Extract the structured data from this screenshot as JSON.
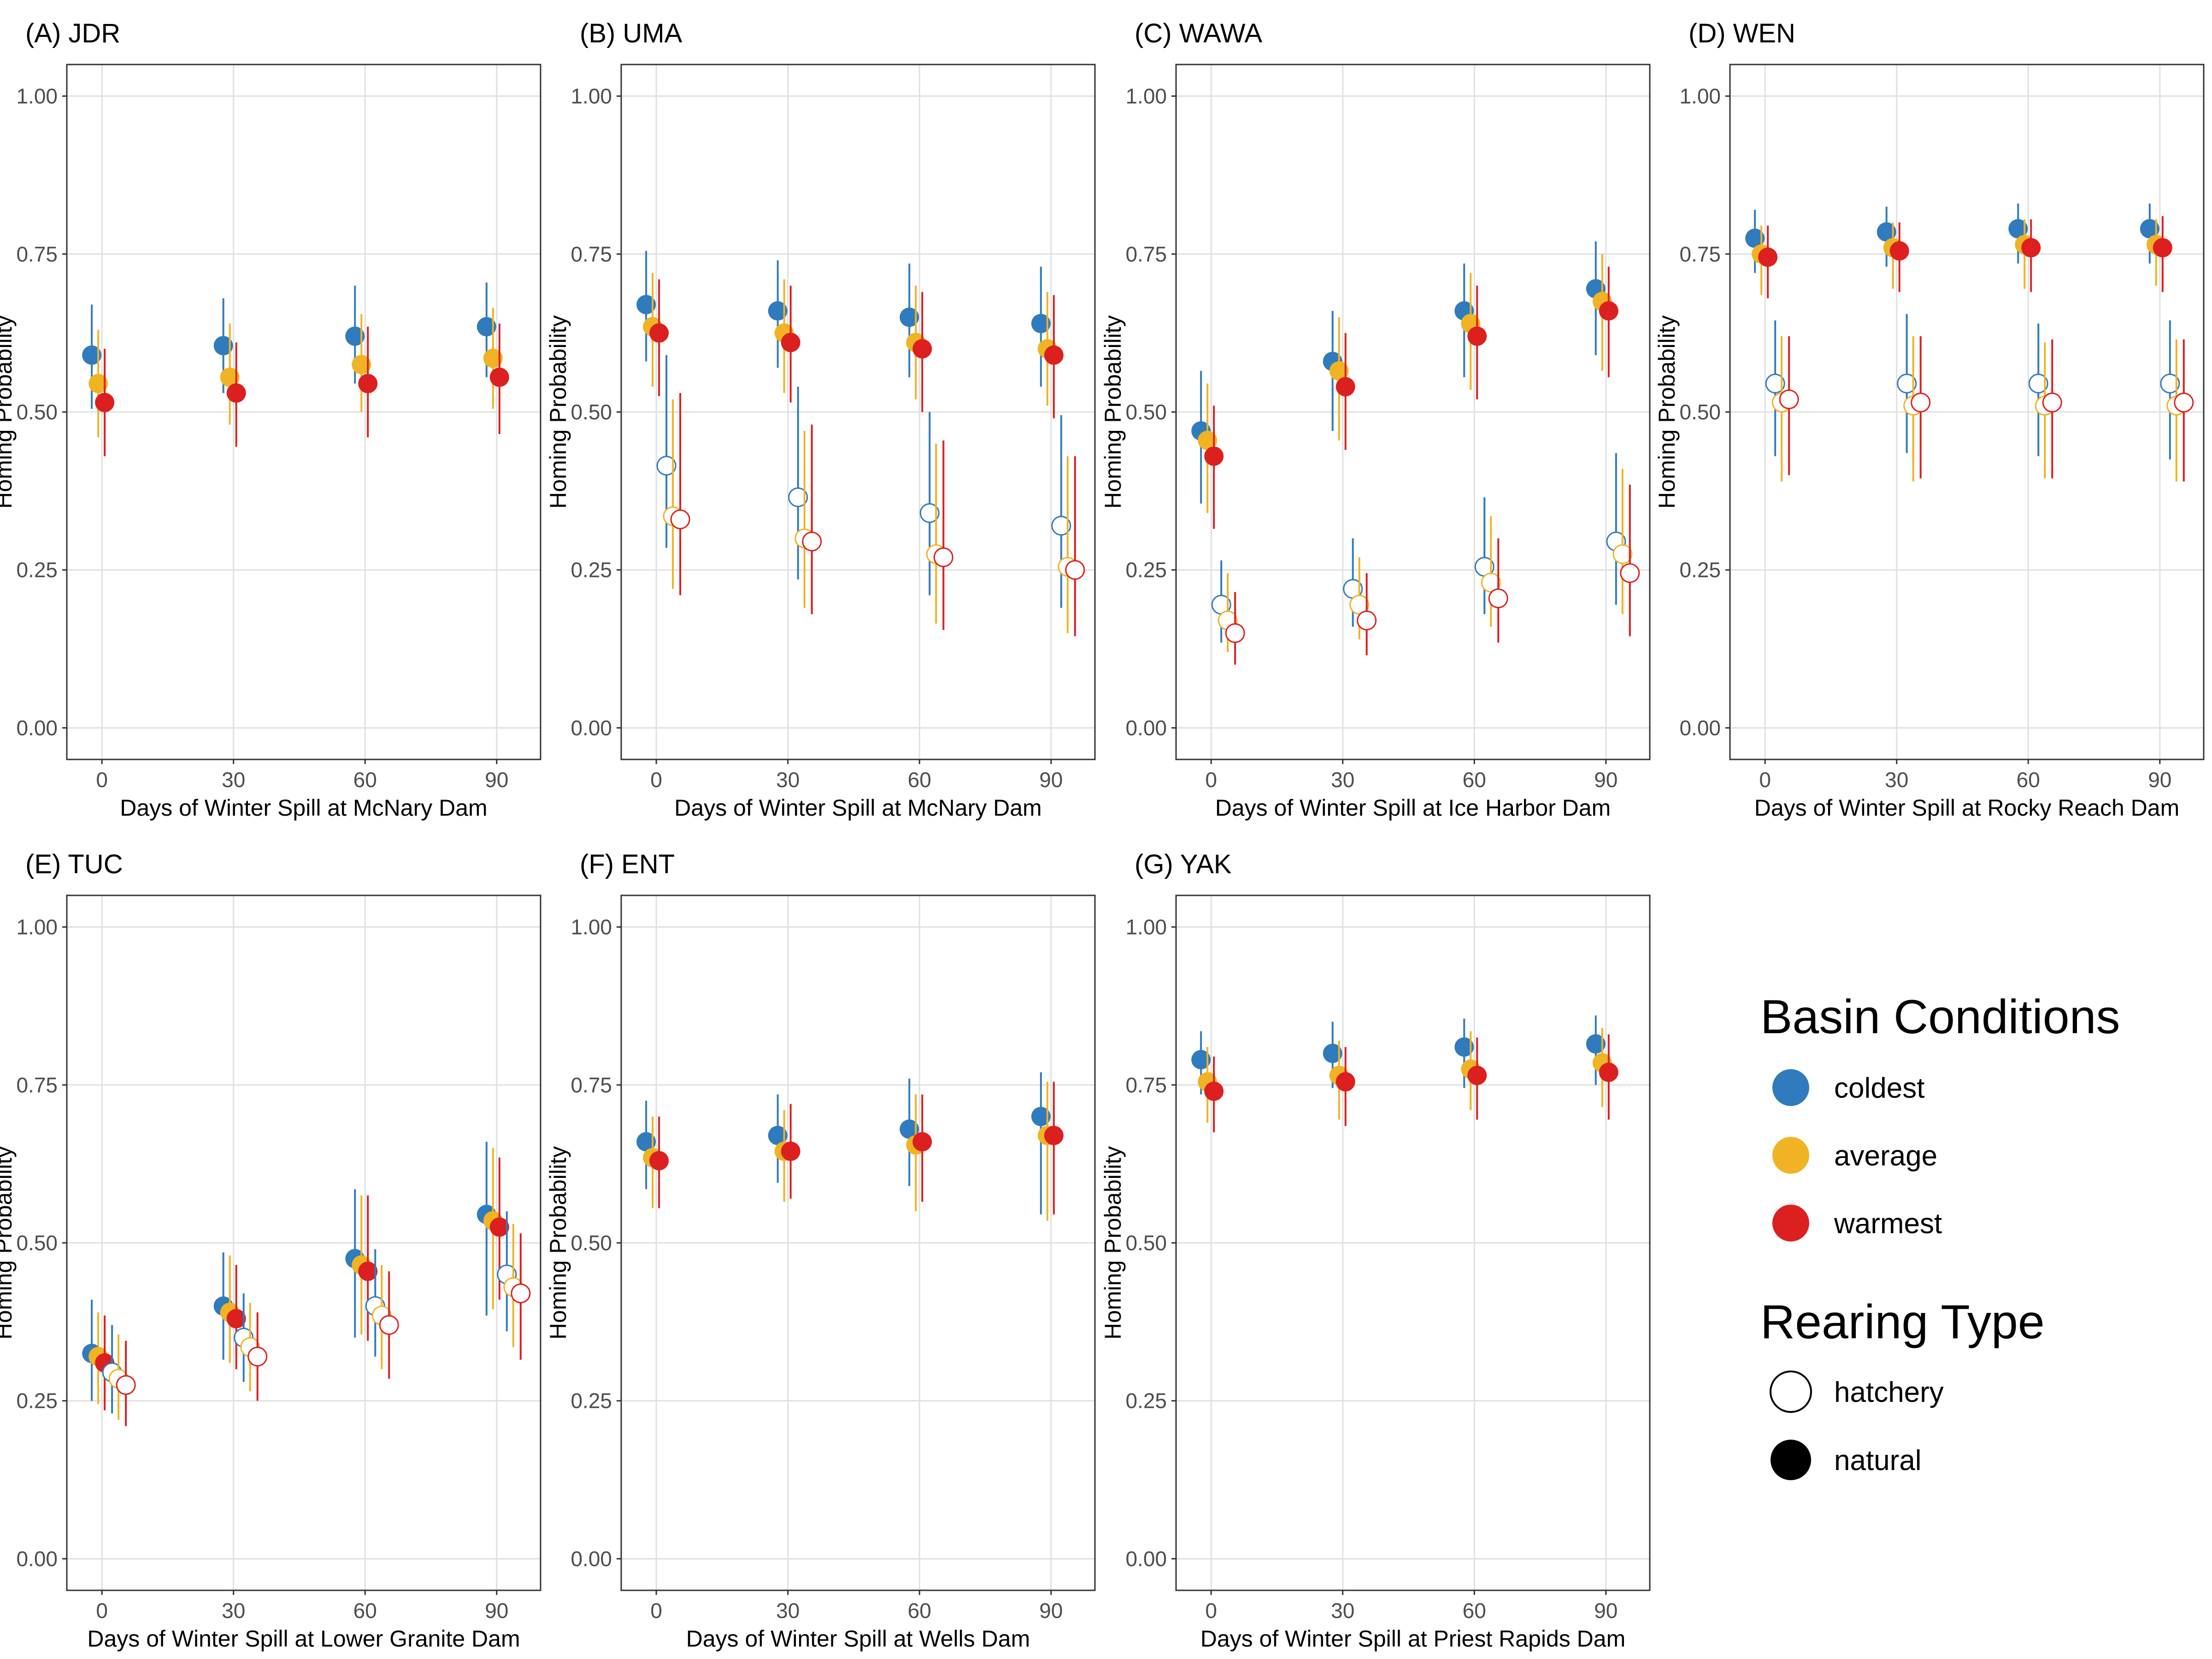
{
  "chart_data": {
    "type": "scatter",
    "y_label": "Homing Probability",
    "y_ticks": [
      "0.00",
      "0.25",
      "0.50",
      "0.75",
      "1.00"
    ],
    "ylim": [
      -0.05,
      1.05
    ],
    "x_values": [
      0,
      30,
      60,
      90
    ],
    "x_tick_labels": [
      "0",
      "30",
      "60",
      "90"
    ],
    "xlim": [
      -8,
      100
    ],
    "grid": true,
    "colors": {
      "coldest": "#2f7bbd",
      "average": "#f0b323",
      "warmest": "#dc1f1f"
    },
    "legend": {
      "position": "bottom-right",
      "basin_title": "Basin Conditions",
      "basin_items": [
        "coldest",
        "average",
        "warmest"
      ],
      "rearing_title": "Rearing Type",
      "rearing_items": [
        "hatchery",
        "natural"
      ]
    },
    "panels": [
      {
        "title": "(A) JDR",
        "xlabel": "Days of Winter Spill at McNary Dam",
        "series": [
          {
            "condition": "coldest",
            "rearing": "natural",
            "y": [
              0.59,
              0.605,
              0.62,
              0.635
            ],
            "lo": [
              0.505,
              0.53,
              0.545,
              0.555
            ],
            "hi": [
              0.67,
              0.68,
              0.7,
              0.705
            ]
          },
          {
            "condition": "average",
            "rearing": "natural",
            "y": [
              0.545,
              0.555,
              0.575,
              0.585
            ],
            "lo": [
              0.46,
              0.48,
              0.5,
              0.505
            ],
            "hi": [
              0.63,
              0.64,
              0.655,
              0.665
            ]
          },
          {
            "condition": "warmest",
            "rearing": "natural",
            "y": [
              0.515,
              0.53,
              0.545,
              0.555
            ],
            "lo": [
              0.43,
              0.445,
              0.46,
              0.465
            ],
            "hi": [
              0.6,
              0.61,
              0.635,
              0.64
            ]
          }
        ]
      },
      {
        "title": "(B) UMA",
        "xlabel": "Days of Winter Spill at McNary Dam",
        "series": [
          {
            "condition": "coldest",
            "rearing": "natural",
            "y": [
              0.67,
              0.66,
              0.65,
              0.64
            ],
            "lo": [
              0.58,
              0.57,
              0.555,
              0.54
            ],
            "hi": [
              0.755,
              0.74,
              0.735,
              0.73
            ]
          },
          {
            "condition": "average",
            "rearing": "natural",
            "y": [
              0.635,
              0.625,
              0.61,
              0.6
            ],
            "lo": [
              0.54,
              0.53,
              0.52,
              0.51
            ],
            "hi": [
              0.72,
              0.71,
              0.7,
              0.69
            ]
          },
          {
            "condition": "warmest",
            "rearing": "natural",
            "y": [
              0.625,
              0.61,
              0.6,
              0.59
            ],
            "lo": [
              0.525,
              0.515,
              0.5,
              0.49
            ],
            "hi": [
              0.71,
              0.7,
              0.69,
              0.685
            ]
          },
          {
            "condition": "coldest",
            "rearing": "hatchery",
            "y": [
              0.415,
              0.365,
              0.34,
              0.32
            ],
            "lo": [
              0.285,
              0.235,
              0.21,
              0.19
            ],
            "hi": [
              0.59,
              0.54,
              0.5,
              0.495
            ]
          },
          {
            "condition": "average",
            "rearing": "hatchery",
            "y": [
              0.335,
              0.3,
              0.275,
              0.255
            ],
            "lo": [
              0.22,
              0.19,
              0.165,
              0.15
            ],
            "hi": [
              0.52,
              0.47,
              0.45,
              0.43
            ]
          },
          {
            "condition": "warmest",
            "rearing": "hatchery",
            "y": [
              0.33,
              0.295,
              0.27,
              0.25
            ],
            "lo": [
              0.21,
              0.18,
              0.155,
              0.145
            ],
            "hi": [
              0.53,
              0.48,
              0.455,
              0.43
            ]
          }
        ]
      },
      {
        "title": "(C) WAWA",
        "xlabel": "Days of Winter Spill at Ice Harbor Dam",
        "series": [
          {
            "condition": "coldest",
            "rearing": "natural",
            "y": [
              0.47,
              0.58,
              0.66,
              0.695
            ],
            "lo": [
              0.355,
              0.47,
              0.555,
              0.59
            ],
            "hi": [
              0.565,
              0.66,
              0.735,
              0.77
            ]
          },
          {
            "condition": "average",
            "rearing": "natural",
            "y": [
              0.455,
              0.565,
              0.64,
              0.675
            ],
            "lo": [
              0.34,
              0.455,
              0.535,
              0.565
            ],
            "hi": [
              0.545,
              0.65,
              0.72,
              0.75
            ]
          },
          {
            "condition": "warmest",
            "rearing": "natural",
            "y": [
              0.43,
              0.54,
              0.62,
              0.66
            ],
            "lo": [
              0.315,
              0.44,
              0.52,
              0.555
            ],
            "hi": [
              0.51,
              0.625,
              0.7,
              0.73
            ]
          },
          {
            "condition": "coldest",
            "rearing": "hatchery",
            "y": [
              0.195,
              0.22,
              0.255,
              0.295
            ],
            "lo": [
              0.135,
              0.16,
              0.18,
              0.195
            ],
            "hi": [
              0.265,
              0.3,
              0.365,
              0.435
            ]
          },
          {
            "condition": "average",
            "rearing": "hatchery",
            "y": [
              0.17,
              0.195,
              0.23,
              0.275
            ],
            "lo": [
              0.12,
              0.14,
              0.16,
              0.18
            ],
            "hi": [
              0.245,
              0.27,
              0.335,
              0.41
            ]
          },
          {
            "condition": "warmest",
            "rearing": "hatchery",
            "y": [
              0.15,
              0.17,
              0.205,
              0.245
            ],
            "lo": [
              0.1,
              0.115,
              0.135,
              0.145
            ],
            "hi": [
              0.215,
              0.245,
              0.3,
              0.385
            ]
          }
        ]
      },
      {
        "title": "(D) WEN",
        "xlabel": "Days of Winter Spill at Rocky Reach Dam",
        "series": [
          {
            "condition": "coldest",
            "rearing": "natural",
            "y": [
              0.775,
              0.785,
              0.79,
              0.79
            ],
            "lo": [
              0.72,
              0.73,
              0.735,
              0.735
            ],
            "hi": [
              0.82,
              0.825,
              0.83,
              0.83
            ]
          },
          {
            "condition": "average",
            "rearing": "natural",
            "y": [
              0.75,
              0.76,
              0.765,
              0.765
            ],
            "lo": [
              0.685,
              0.695,
              0.695,
              0.7
            ],
            "hi": [
              0.795,
              0.8,
              0.805,
              0.805
            ]
          },
          {
            "condition": "warmest",
            "rearing": "natural",
            "y": [
              0.745,
              0.755,
              0.76,
              0.76
            ],
            "lo": [
              0.68,
              0.69,
              0.69,
              0.69
            ],
            "hi": [
              0.795,
              0.8,
              0.805,
              0.81
            ]
          },
          {
            "condition": "coldest",
            "rearing": "hatchery",
            "y": [
              0.545,
              0.545,
              0.545,
              0.545
            ],
            "lo": [
              0.43,
              0.435,
              0.43,
              0.425
            ],
            "hi": [
              0.645,
              0.655,
              0.64,
              0.645
            ]
          },
          {
            "condition": "average",
            "rearing": "hatchery",
            "y": [
              0.515,
              0.51,
              0.51,
              0.51
            ],
            "lo": [
              0.39,
              0.39,
              0.395,
              0.39
            ],
            "hi": [
              0.62,
              0.62,
              0.61,
              0.615
            ]
          },
          {
            "condition": "warmest",
            "rearing": "hatchery",
            "y": [
              0.52,
              0.515,
              0.515,
              0.515
            ],
            "lo": [
              0.4,
              0.395,
              0.395,
              0.39
            ],
            "hi": [
              0.62,
              0.62,
              0.615,
              0.615
            ]
          }
        ]
      },
      {
        "title": "(E) TUC",
        "xlabel": "Days of Winter Spill at Lower Granite Dam",
        "series": [
          {
            "condition": "coldest",
            "rearing": "natural",
            "y": [
              0.325,
              0.4,
              0.475,
              0.545
            ],
            "lo": [
              0.25,
              0.315,
              0.35,
              0.385
            ],
            "hi": [
              0.41,
              0.485,
              0.585,
              0.66
            ]
          },
          {
            "condition": "average",
            "rearing": "natural",
            "y": [
              0.32,
              0.39,
              0.465,
              0.535
            ],
            "lo": [
              0.245,
              0.31,
              0.355,
              0.395
            ],
            "hi": [
              0.39,
              0.48,
              0.575,
              0.65
            ]
          },
          {
            "condition": "warmest",
            "rearing": "natural",
            "y": [
              0.31,
              0.38,
              0.455,
              0.525
            ],
            "lo": [
              0.235,
              0.3,
              0.345,
              0.41
            ],
            "hi": [
              0.385,
              0.465,
              0.575,
              0.635
            ]
          },
          {
            "condition": "coldest",
            "rearing": "hatchery",
            "y": [
              0.295,
              0.35,
              0.4,
              0.45
            ],
            "lo": [
              0.23,
              0.28,
              0.32,
              0.36
            ],
            "hi": [
              0.37,
              0.42,
              0.49,
              0.55
            ]
          },
          {
            "condition": "average",
            "rearing": "hatchery",
            "y": [
              0.285,
              0.335,
              0.385,
              0.43
            ],
            "lo": [
              0.22,
              0.265,
              0.3,
              0.335
            ],
            "hi": [
              0.355,
              0.405,
              0.465,
              0.53
            ]
          },
          {
            "condition": "warmest",
            "rearing": "hatchery",
            "y": [
              0.275,
              0.32,
              0.37,
              0.42
            ],
            "lo": [
              0.21,
              0.25,
              0.285,
              0.315
            ],
            "hi": [
              0.345,
              0.39,
              0.455,
              0.515
            ]
          }
        ]
      },
      {
        "title": "(F) ENT",
        "xlabel": "Days of Winter Spill at Wells Dam",
        "series": [
          {
            "condition": "coldest",
            "rearing": "natural",
            "y": [
              0.66,
              0.67,
              0.68,
              0.7
            ],
            "lo": [
              0.585,
              0.595,
              0.59,
              0.545
            ],
            "hi": [
              0.725,
              0.735,
              0.76,
              0.77
            ]
          },
          {
            "condition": "average",
            "rearing": "natural",
            "y": [
              0.635,
              0.645,
              0.655,
              0.67
            ],
            "lo": [
              0.555,
              0.565,
              0.55,
              0.535
            ],
            "hi": [
              0.7,
              0.71,
              0.735,
              0.755
            ]
          },
          {
            "condition": "warmest",
            "rearing": "natural",
            "y": [
              0.63,
              0.645,
              0.66,
              0.67
            ],
            "lo": [
              0.555,
              0.57,
              0.565,
              0.545
            ],
            "hi": [
              0.7,
              0.72,
              0.735,
              0.755
            ]
          }
        ]
      },
      {
        "title": "(G) YAK",
        "xlabel": "Days of Winter Spill at Priest Rapids Dam",
        "series": [
          {
            "condition": "coldest",
            "rearing": "natural",
            "y": [
              0.79,
              0.8,
              0.81,
              0.815
            ],
            "lo": [
              0.735,
              0.745,
              0.745,
              0.75
            ],
            "hi": [
              0.835,
              0.85,
              0.855,
              0.86
            ]
          },
          {
            "condition": "average",
            "rearing": "natural",
            "y": [
              0.755,
              0.765,
              0.775,
              0.785
            ],
            "lo": [
              0.69,
              0.695,
              0.71,
              0.715
            ],
            "hi": [
              0.81,
              0.82,
              0.835,
              0.84
            ]
          },
          {
            "condition": "warmest",
            "rearing": "natural",
            "y": [
              0.74,
              0.755,
              0.765,
              0.77
            ],
            "lo": [
              0.675,
              0.685,
              0.695,
              0.695
            ],
            "hi": [
              0.795,
              0.81,
              0.825,
              0.83
            ]
          }
        ]
      }
    ]
  }
}
